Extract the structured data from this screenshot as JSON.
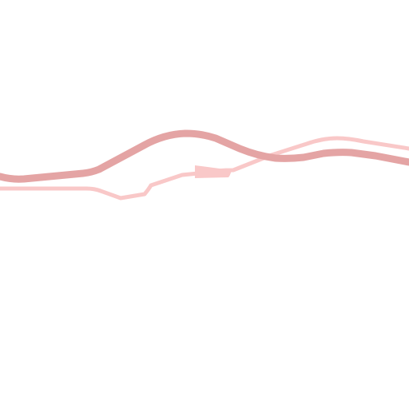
{
  "map": {
    "background_color": "#ffffff",
    "roads": [
      {
        "name": "primary-road",
        "class": "primary",
        "color": "#e4a4a4"
      },
      {
        "name": "secondary-road",
        "class": "secondary",
        "color": "#f9c8c8"
      },
      {
        "name": "road-junction-marker",
        "class": "junction",
        "color": "#f9c8c8"
      }
    ]
  }
}
